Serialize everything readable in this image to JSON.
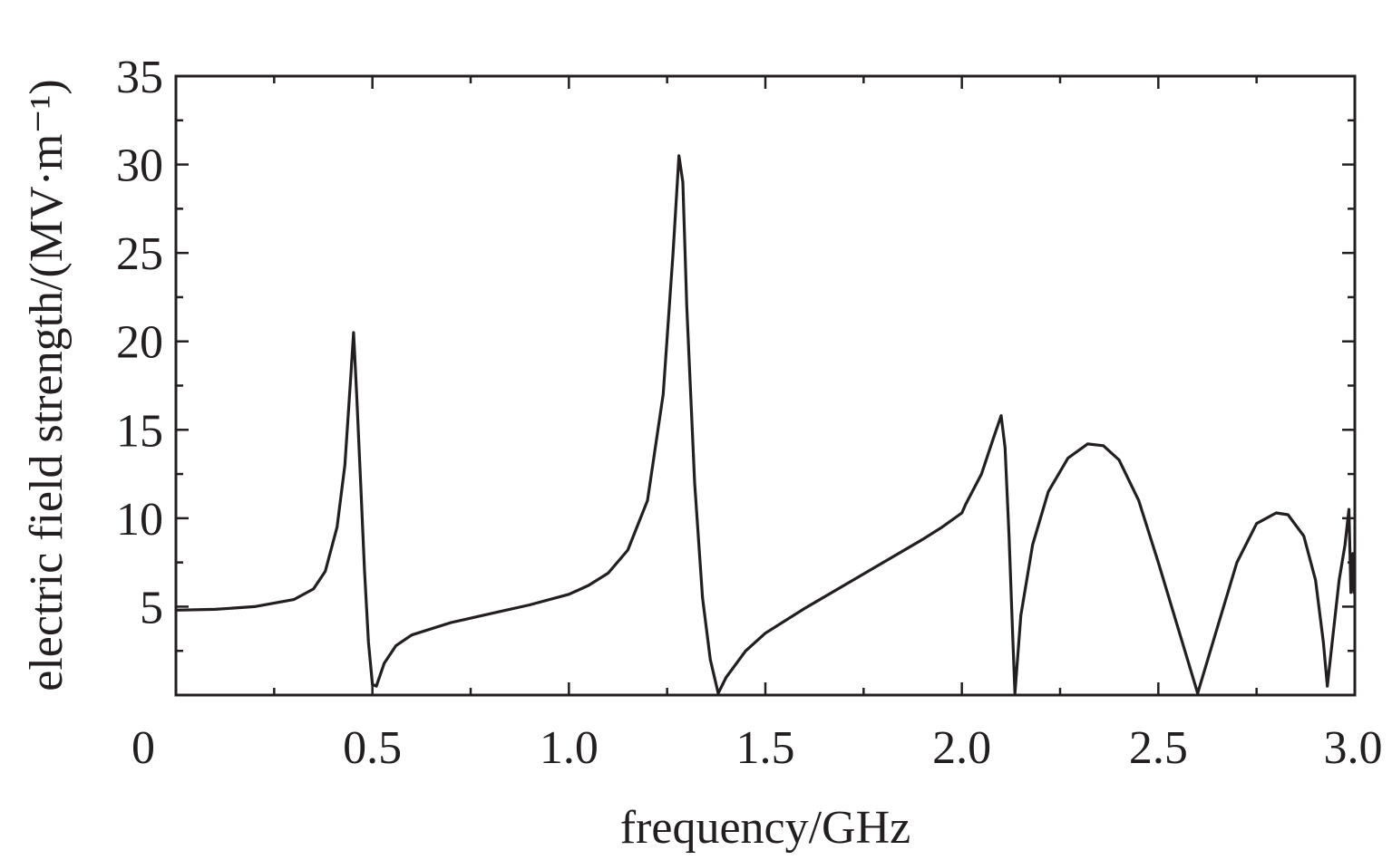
{
  "chart_data": {
    "type": "line",
    "title": "",
    "xlabel": "frequency/GHz",
    "ylabel": "electric field strength/(MV·m⁻¹)",
    "xlim": [
      0,
      3.0
    ],
    "ylim": [
      0,
      35
    ],
    "x_ticks": [
      0,
      0.5,
      1.0,
      1.5,
      2.0,
      2.5,
      3.0
    ],
    "x_tick_labels": [
      "0",
      "0.5",
      "1.0",
      "1.5",
      "2.0",
      "2.5",
      "3.0"
    ],
    "y_ticks": [
      5,
      10,
      15,
      20,
      25,
      30,
      35
    ],
    "y_tick_labels": [
      "5",
      "10",
      "15",
      "20",
      "25",
      "30",
      "35"
    ],
    "grid": false,
    "legend": "none",
    "series": [
      {
        "color": "#231f20",
        "points": [
          [
            0.0,
            4.8
          ],
          [
            0.1,
            4.85
          ],
          [
            0.2,
            5.0
          ],
          [
            0.3,
            5.4
          ],
          [
            0.35,
            6.0
          ],
          [
            0.38,
            7.0
          ],
          [
            0.41,
            9.5
          ],
          [
            0.43,
            13.0
          ],
          [
            0.445,
            18.0
          ],
          [
            0.452,
            20.5
          ],
          [
            0.46,
            17.0
          ],
          [
            0.47,
            12.0
          ],
          [
            0.48,
            7.0
          ],
          [
            0.49,
            3.0
          ],
          [
            0.5,
            0.6
          ],
          [
            0.51,
            0.5
          ],
          [
            0.53,
            1.8
          ],
          [
            0.56,
            2.8
          ],
          [
            0.6,
            3.4
          ],
          [
            0.7,
            4.1
          ],
          [
            0.8,
            4.6
          ],
          [
            0.9,
            5.1
          ],
          [
            1.0,
            5.7
          ],
          [
            1.05,
            6.2
          ],
          [
            1.1,
            6.9
          ],
          [
            1.15,
            8.2
          ],
          [
            1.2,
            11.0
          ],
          [
            1.24,
            17.0
          ],
          [
            1.265,
            25.0
          ],
          [
            1.28,
            30.5
          ],
          [
            1.29,
            29.0
          ],
          [
            1.3,
            22.0
          ],
          [
            1.32,
            12.0
          ],
          [
            1.34,
            5.5
          ],
          [
            1.36,
            2.0
          ],
          [
            1.38,
            0.1
          ],
          [
            1.4,
            1.0
          ],
          [
            1.45,
            2.5
          ],
          [
            1.5,
            3.5
          ],
          [
            1.6,
            4.9
          ],
          [
            1.7,
            6.2
          ],
          [
            1.8,
            7.5
          ],
          [
            1.9,
            8.8
          ],
          [
            1.95,
            9.5
          ],
          [
            2.0,
            10.3
          ],
          [
            2.01,
            10.8
          ],
          [
            2.05,
            12.5
          ],
          [
            2.08,
            14.5
          ],
          [
            2.1,
            15.8
          ],
          [
            2.11,
            14.0
          ],
          [
            2.12,
            9.0
          ],
          [
            2.13,
            3.0
          ],
          [
            2.135,
            0.1
          ],
          [
            2.15,
            4.5
          ],
          [
            2.18,
            8.5
          ],
          [
            2.22,
            11.5
          ],
          [
            2.27,
            13.4
          ],
          [
            2.32,
            14.2
          ],
          [
            2.36,
            14.1
          ],
          [
            2.4,
            13.3
          ],
          [
            2.45,
            11.0
          ],
          [
            2.5,
            7.5
          ],
          [
            2.55,
            3.8
          ],
          [
            2.6,
            0.1
          ],
          [
            2.65,
            3.8
          ],
          [
            2.7,
            7.5
          ],
          [
            2.75,
            9.7
          ],
          [
            2.8,
            10.3
          ],
          [
            2.83,
            10.2
          ],
          [
            2.87,
            9.0
          ],
          [
            2.9,
            6.5
          ],
          [
            2.92,
            3.0
          ],
          [
            2.93,
            0.5
          ],
          [
            2.94,
            2.5
          ],
          [
            2.96,
            6.5
          ],
          [
            2.975,
            8.5
          ],
          [
            2.985,
            10.5
          ],
          [
            2.99,
            5.8
          ],
          [
            2.995,
            8.0
          ],
          [
            2.998,
            5.8
          ]
        ]
      }
    ]
  }
}
